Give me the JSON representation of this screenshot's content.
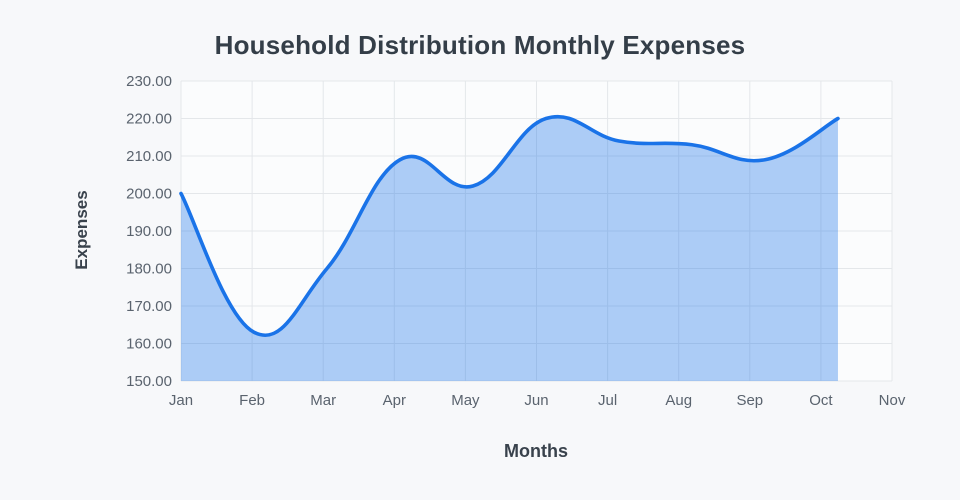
{
  "page": {
    "background_color": "#f7f8fa"
  },
  "chart_data": {
    "type": "area",
    "title": "Household Distribution Monthly Expenses",
    "xlabel": "Months",
    "ylabel": "Expenses",
    "x_tick_labels": [
      "Jan",
      "Feb",
      "Mar",
      "Apr",
      "May",
      "Jun",
      "Jul",
      "Aug",
      "Sep",
      "Oct",
      "Nov"
    ],
    "categories": [
      "Jan",
      "Feb",
      "Mar",
      "Apr",
      "May",
      "Jun",
      "Jul",
      "Aug",
      "Sep",
      "Oct"
    ],
    "values": [
      200,
      163,
      180,
      209,
      202,
      220,
      214,
      213,
      209,
      220
    ],
    "y_tick_labels": [
      "230.00",
      "220.00",
      "210.00",
      "200.00",
      "190.00",
      "180.00",
      "170.00",
      "160.00",
      "150.00"
    ],
    "ylim": [
      150,
      230
    ],
    "y_step": 10,
    "grid": true,
    "legend": false,
    "smooth": true,
    "line_color": "#1a73e8",
    "fill_color": "rgba(26,115,232,0.35)",
    "grid_color": "#e4e7ea",
    "plot_bg_color": "#fbfcfd",
    "tick_label_color": "#5a636e",
    "title_color": "#343e48",
    "axis_title_color": "#39424c",
    "x_end_fraction": 0.924
  }
}
